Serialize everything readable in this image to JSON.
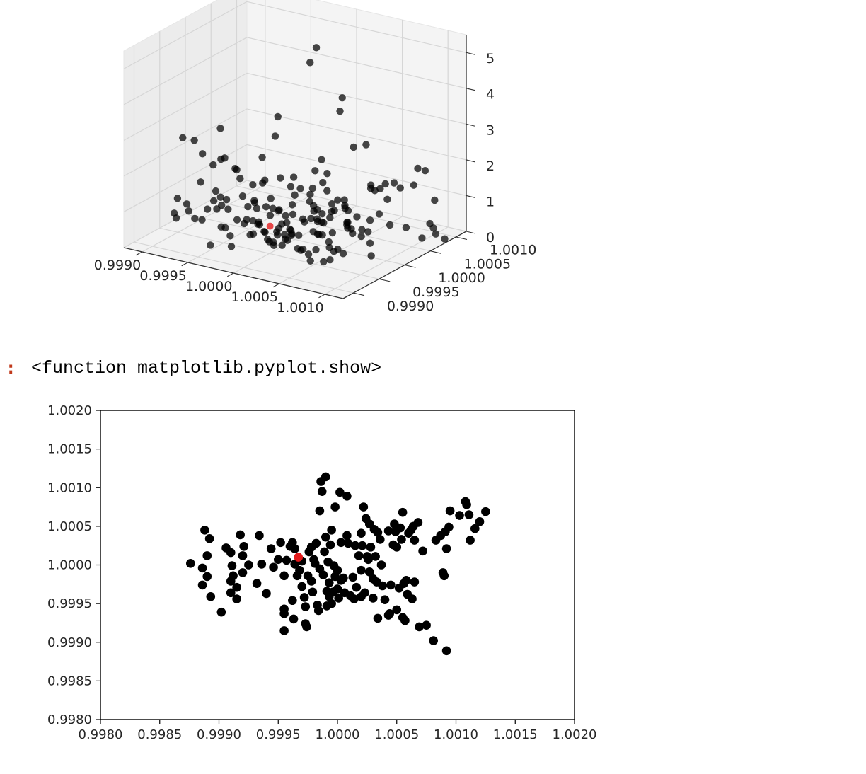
{
  "output": {
    "prompt": ":",
    "text": "<function matplotlib.pyplot.show>"
  },
  "colors": {
    "point": "#000000",
    "highlight": "#e31a1c",
    "pane": "#f2f2f2",
    "grid": "#d9d9d9"
  },
  "chart_data": [
    {
      "type": "scatter3d",
      "xlim": [
        0.9988,
        1.0012
      ],
      "ylim": [
        0.9988,
        1.0012
      ],
      "zlim": [
        0,
        5.5
      ],
      "xticks": [
        "0.9990",
        "0.9995",
        "1.0000",
        "1.0005",
        "1.0010"
      ],
      "yticks": [
        "0.9990",
        "0.9995",
        "1.0000",
        "1.0005",
        "1.0010"
      ],
      "zticks": [
        "0",
        "1",
        "2",
        "3",
        "4",
        "5"
      ],
      "grid": true,
      "highlight": {
        "x": 0.99967,
        "y": 1.0001,
        "z": 0.1
      }
    },
    {
      "type": "scatter",
      "xlim": [
        0.998,
        1.002
      ],
      "ylim": [
        0.998,
        1.002
      ],
      "xticks": [
        "0.9980",
        "0.9985",
        "0.9990",
        "0.9995",
        "1.0000",
        "1.0005",
        "1.0010",
        "1.0015",
        "1.0020"
      ],
      "yticks": [
        "0.9980",
        "0.9985",
        "0.9990",
        "0.9995",
        "1.0000",
        "1.0005",
        "1.0010",
        "1.0015",
        "1.0020"
      ],
      "xlabel": "",
      "ylabel": "",
      "title": "",
      "grid": false,
      "highlight": {
        "x": 0.99967,
        "y": 1.0001
      },
      "points": [
        [
          0.99876,
          1.00002
        ],
        [
          0.99886,
          0.99996
        ],
        [
          0.99886,
          0.99974
        ],
        [
          0.99888,
          1.00045
        ],
        [
          0.9989,
          0.99985
        ],
        [
          0.9989,
          1.00012
        ],
        [
          0.99892,
          1.00034
        ],
        [
          0.99893,
          0.99959
        ],
        [
          0.99902,
          0.99939
        ],
        [
          0.99906,
          1.00022
        ],
        [
          0.9991,
          1.00016
        ],
        [
          0.9991,
          0.99979
        ],
        [
          0.9991,
          0.99964
        ],
        [
          0.99911,
          0.99999
        ],
        [
          0.99912,
          0.99986
        ],
        [
          0.99915,
          0.99971
        ],
        [
          0.99915,
          0.99956
        ],
        [
          0.99918,
          1.00039
        ],
        [
          0.9992,
          1.00012
        ],
        [
          0.99921,
          1.00024
        ],
        [
          0.99925,
          1.0
        ],
        [
          0.99932,
          0.99976
        ],
        [
          0.99934,
          1.00038
        ],
        [
          0.99936,
          1.00001
        ],
        [
          0.9994,
          0.99963
        ],
        [
          0.99944,
          1.00021
        ],
        [
          0.99946,
          0.99997
        ],
        [
          0.9995,
          1.00007
        ],
        [
          0.99952,
          1.00029
        ],
        [
          0.99955,
          0.99943
        ],
        [
          0.99955,
          0.99937
        ],
        [
          0.99955,
          0.99915
        ],
        [
          0.99955,
          0.99986
        ],
        [
          0.99957,
          1.00006
        ],
        [
          0.9996,
          1.00024
        ],
        [
          0.99962,
          1.00029
        ],
        [
          0.99962,
          0.99954
        ],
        [
          0.99964,
          1.00021
        ],
        [
          0.99964,
          1.00001
        ],
        [
          0.99966,
          0.99986
        ],
        [
          0.99968,
          0.99993
        ],
        [
          0.9997,
          1.00005
        ],
        [
          0.9997,
          0.99972
        ],
        [
          0.99972,
          0.99958
        ],
        [
          0.99973,
          0.99946
        ],
        [
          0.99973,
          0.99924
        ],
        [
          0.99974,
          0.9992
        ],
        [
          0.99975,
          0.99986
        ],
        [
          0.99976,
          1.00017
        ],
        [
          0.99978,
          0.99979
        ],
        [
          0.99978,
          1.00023
        ],
        [
          0.9998,
          1.00007
        ],
        [
          0.99981,
          1.00002
        ],
        [
          0.99982,
          1.00028
        ],
        [
          0.99983,
          0.99948
        ],
        [
          0.99984,
          0.99941
        ],
        [
          0.99985,
          1.0007
        ],
        [
          0.99985,
          0.99995
        ],
        [
          0.99986,
          1.00108
        ],
        [
          0.99987,
          1.00095
        ],
        [
          0.99988,
          0.99987
        ],
        [
          0.99989,
          1.00017
        ],
        [
          0.9999,
          1.00036
        ],
        [
          0.9999,
          1.00114
        ],
        [
          0.99991,
          0.99966
        ],
        [
          0.99991,
          0.99947
        ],
        [
          0.99992,
          1.00004
        ],
        [
          0.99993,
          0.99977
        ],
        [
          0.99993,
          0.99959
        ],
        [
          0.99994,
          1.00026
        ],
        [
          0.99995,
          1.00045
        ],
        [
          0.99996,
          0.99965
        ],
        [
          0.99997,
          0.99999
        ],
        [
          0.99998,
          1.00075
        ],
        [
          0.99998,
          0.99985
        ],
        [
          1.0,
          0.99993
        ],
        [
          1.0,
          0.99969
        ],
        [
          1.00001,
          0.99957
        ],
        [
          1.00002,
          1.00094
        ],
        [
          1.00003,
          1.00029
        ],
        [
          1.00005,
          0.99983
        ],
        [
          1.00006,
          0.99964
        ],
        [
          1.00008,
          1.00038
        ],
        [
          1.00008,
          1.00089
        ],
        [
          1.00009,
          1.00028
        ],
        [
          1.00011,
          0.9996
        ],
        [
          1.00013,
          0.99984
        ],
        [
          1.00014,
          0.99956
        ],
        [
          1.00015,
          1.00025
        ],
        [
          1.00016,
          0.99971
        ],
        [
          1.00018,
          1.00012
        ],
        [
          1.0002,
          1.00041
        ],
        [
          1.0002,
          0.99993
        ],
        [
          1.0002,
          0.99959
        ],
        [
          1.00021,
          1.00025
        ],
        [
          1.00022,
          1.00075
        ],
        [
          1.00023,
          0.99964
        ],
        [
          1.00024,
          1.0006
        ],
        [
          1.00025,
          1.00011
        ],
        [
          1.00026,
          1.00007
        ],
        [
          1.00027,
          0.99991
        ],
        [
          1.00027,
          1.00053
        ],
        [
          1.00028,
          1.00023
        ],
        [
          1.0003,
          0.99982
        ],
        [
          1.0003,
          0.99957
        ],
        [
          1.00031,
          1.00046
        ],
        [
          1.00032,
          1.00011
        ],
        [
          1.00033,
          0.99978
        ],
        [
          1.00034,
          0.99931
        ],
        [
          1.00034,
          1.00042
        ],
        [
          1.00036,
          1.00033
        ],
        [
          1.00037,
          1.0
        ],
        [
          1.00038,
          0.99973
        ],
        [
          1.00043,
          1.00044
        ],
        [
          1.00043,
          0.99935
        ],
        [
          1.00044,
          0.99937
        ],
        [
          1.00045,
          0.99974
        ],
        [
          1.00047,
          1.00026
        ],
        [
          1.00048,
          1.00053
        ],
        [
          1.00049,
          1.00043
        ],
        [
          1.0005,
          0.99942
        ],
        [
          1.00052,
          0.9997
        ],
        [
          1.00053,
          1.00048
        ],
        [
          1.00054,
          1.00033
        ],
        [
          1.00055,
          1.00068
        ],
        [
          1.00055,
          0.99932
        ],
        [
          1.00056,
          0.99976
        ],
        [
          1.00057,
          0.99928
        ],
        [
          1.00058,
          0.9998
        ],
        [
          1.00059,
          0.99962
        ],
        [
          1.0006,
          1.00041
        ],
        [
          1.00062,
          1.00045
        ],
        [
          1.00063,
          0.99956
        ],
        [
          1.00064,
          1.0005
        ],
        [
          1.00065,
          1.00032
        ],
        [
          1.00065,
          0.99978
        ],
        [
          1.00068,
          1.00055
        ],
        [
          1.00069,
          0.9992
        ],
        [
          1.00072,
          1.00018
        ],
        [
          1.00075,
          0.99922
        ],
        [
          1.00081,
          0.99902
        ],
        [
          1.00083,
          1.00032
        ],
        [
          1.00087,
          1.00038
        ],
        [
          1.00089,
          0.9999
        ],
        [
          1.0009,
          0.99986
        ],
        [
          1.00091,
          1.00043
        ],
        [
          1.00092,
          0.99889
        ],
        [
          1.00092,
          1.00021
        ],
        [
          1.00094,
          1.00049
        ],
        [
          1.00095,
          1.0007
        ],
        [
          1.00103,
          1.00064
        ],
        [
          1.00108,
          1.00082
        ],
        [
          1.00109,
          1.00078
        ],
        [
          1.00111,
          1.00065
        ],
        [
          1.00112,
          1.00032
        ],
        [
          1.00116,
          1.00047
        ],
        [
          1.0012,
          1.00056
        ],
        [
          1.00125,
          1.00069
        ],
        [
          1.0005,
          1.00023
        ],
        [
          0.99995,
          0.9995
        ],
        [
          0.99963,
          0.9993
        ],
        [
          1.00003,
          0.9998
        ],
        [
          0.99979,
          0.99965
        ],
        [
          1.0004,
          0.99955
        ],
        [
          0.9992,
          0.9999
        ]
      ]
    }
  ]
}
